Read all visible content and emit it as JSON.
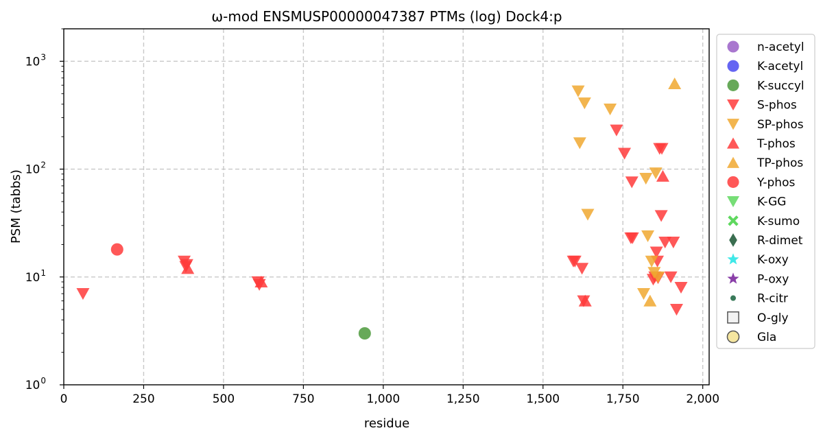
{
  "chart_data": {
    "type": "scatter",
    "title": "ω-mod ENSMUSP00000047387 PTMs (log) Dock4:p",
    "xlabel": "residue",
    "ylabel": "PSM (tabbs)",
    "xlim": [
      0,
      2020
    ],
    "ylim": [
      1,
      2000
    ],
    "yscale": "log",
    "grid": true,
    "legend_position": "outside-right",
    "x_ticks": [
      {
        "value": 0,
        "label": "0"
      },
      {
        "value": 250,
        "label": "250"
      },
      {
        "value": 500,
        "label": "500"
      },
      {
        "value": 750,
        "label": "750"
      },
      {
        "value": 1000,
        "label": "1,000"
      },
      {
        "value": 1250,
        "label": "1,250"
      },
      {
        "value": 1500,
        "label": "1,500"
      },
      {
        "value": 1750,
        "label": "1,750"
      },
      {
        "value": 2000,
        "label": "2,000"
      }
    ],
    "y_ticks": [
      {
        "value": 1,
        "base": "10",
        "exp": "0"
      },
      {
        "value": 10,
        "base": "10",
        "exp": "1"
      },
      {
        "value": 100,
        "base": "10",
        "exp": "2"
      },
      {
        "value": 1000,
        "base": "10",
        "exp": "3"
      }
    ],
    "series": [
      {
        "name": "n-acetyl",
        "marker": "circle",
        "color": "#9a5fc7",
        "points": []
      },
      {
        "name": "K-acetyl",
        "marker": "circle",
        "color": "#4a4af0",
        "points": []
      },
      {
        "name": "K-succyl",
        "marker": "circle",
        "color": "#4c9a3c",
        "points": [
          [
            942,
            3
          ]
        ]
      },
      {
        "name": "S-phos",
        "marker": "triangle-down",
        "color": "#ff3b3b",
        "points": [
          [
            60,
            7
          ],
          [
            377,
            14
          ],
          [
            382,
            12.5
          ],
          [
            385,
            13
          ],
          [
            608,
            9
          ],
          [
            612,
            8.5
          ],
          [
            1595,
            14
          ],
          [
            1600,
            14
          ],
          [
            1622,
            12
          ],
          [
            1627,
            6
          ],
          [
            1730,
            230
          ],
          [
            1755,
            140
          ],
          [
            1775,
            23
          ],
          [
            1778,
            76
          ],
          [
            1780,
            23
          ],
          [
            1845,
            9.5
          ],
          [
            1850,
            10
          ],
          [
            1855,
            17
          ],
          [
            1858,
            14
          ],
          [
            1860,
            9.8
          ],
          [
            1865,
            155
          ],
          [
            1870,
            37
          ],
          [
            1872,
            155
          ],
          [
            1882,
            21
          ],
          [
            1900,
            10
          ],
          [
            1908,
            21
          ],
          [
            1918,
            5
          ],
          [
            1932,
            8
          ]
        ]
      },
      {
        "name": "SP-phos",
        "marker": "triangle-down",
        "color": "#f0a830",
        "points": [
          [
            1610,
            530
          ],
          [
            1615,
            175
          ],
          [
            1630,
            410
          ],
          [
            1640,
            38
          ],
          [
            1710,
            360
          ],
          [
            1815,
            7
          ],
          [
            1822,
            82
          ],
          [
            1828,
            24
          ],
          [
            1840,
            14
          ],
          [
            1848,
            11
          ],
          [
            1853,
            92
          ],
          [
            1860,
            10
          ]
        ]
      },
      {
        "name": "T-phos",
        "marker": "triangle-up",
        "color": "#ff3b3b",
        "points": [
          [
            388,
            12
          ],
          [
            618,
            9
          ],
          [
            1632,
            6
          ],
          [
            1875,
            86
          ]
        ]
      },
      {
        "name": "TP-phos",
        "marker": "triangle-up",
        "color": "#f0a830",
        "points": [
          [
            1835,
            6
          ],
          [
            1912,
            620
          ]
        ]
      },
      {
        "name": "Y-phos",
        "marker": "circle",
        "color": "#ff3b3b",
        "points": [
          [
            167,
            18
          ]
        ]
      },
      {
        "name": "K-GG",
        "marker": "triangle-down",
        "color": "#5fd85f",
        "points": []
      },
      {
        "name": "K-sumo",
        "marker": "x",
        "color": "#5fd85f",
        "points": []
      },
      {
        "name": "R-dimet",
        "marker": "diamond",
        "color": "#3a6e50",
        "points": []
      },
      {
        "name": "K-oxy",
        "marker": "star",
        "color": "#40e8e8",
        "points": []
      },
      {
        "name": "P-oxy",
        "marker": "star",
        "color": "#8a3fa8",
        "points": []
      },
      {
        "name": "R-citr",
        "marker": "small-circle",
        "color": "#3a7a5a",
        "points": []
      },
      {
        "name": "O-gly",
        "marker": "square-open",
        "color": "#555555",
        "points": []
      },
      {
        "name": "Gla",
        "marker": "circle-open",
        "color": "#f5e6a0",
        "points": []
      }
    ]
  }
}
